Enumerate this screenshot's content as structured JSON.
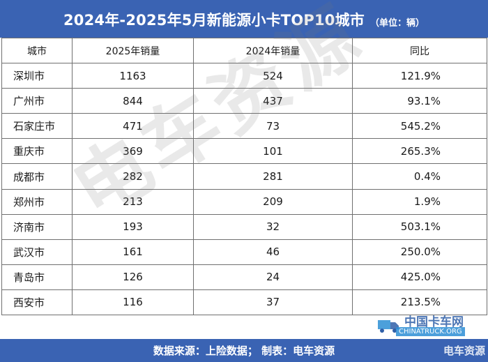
{
  "title": {
    "main": "2024年-2025年5月新能源小卡TOP10城市",
    "unit": "（单位：辆）"
  },
  "table": {
    "headers": [
      "城市",
      "2025年销量",
      "2024年销量",
      "同比"
    ],
    "rows": [
      [
        "深圳市",
        "1163",
        "524",
        "121.9%"
      ],
      [
        "广州市",
        "844",
        "437",
        "93.1%"
      ],
      [
        "石家庄市",
        "471",
        "73",
        "545.2%"
      ],
      [
        "重庆市",
        "369",
        "101",
        "265.3%"
      ],
      [
        "成都市",
        "282",
        "281",
        "0.4%"
      ],
      [
        "郑州市",
        "213",
        "209",
        "1.9%"
      ],
      [
        "济南市",
        "193",
        "32",
        "503.1%"
      ],
      [
        "武汉市",
        "161",
        "46",
        "250.0%"
      ],
      [
        "青岛市",
        "126",
        "24",
        "425.0%"
      ],
      [
        "西安市",
        "116",
        "37",
        "213.5%"
      ]
    ]
  },
  "footer": "数据来源：上险数据；  制表：电车资源",
  "watermark": "电车资源",
  "logo": {
    "cn": "中国卡车网",
    "en": "CHINATRUCK.ORG",
    "bottom": "电车资源",
    "accent_color": "#2d8fd5"
  },
  "colors": {
    "header_bg": "#3a63b3",
    "border": "#6f6f6f"
  }
}
